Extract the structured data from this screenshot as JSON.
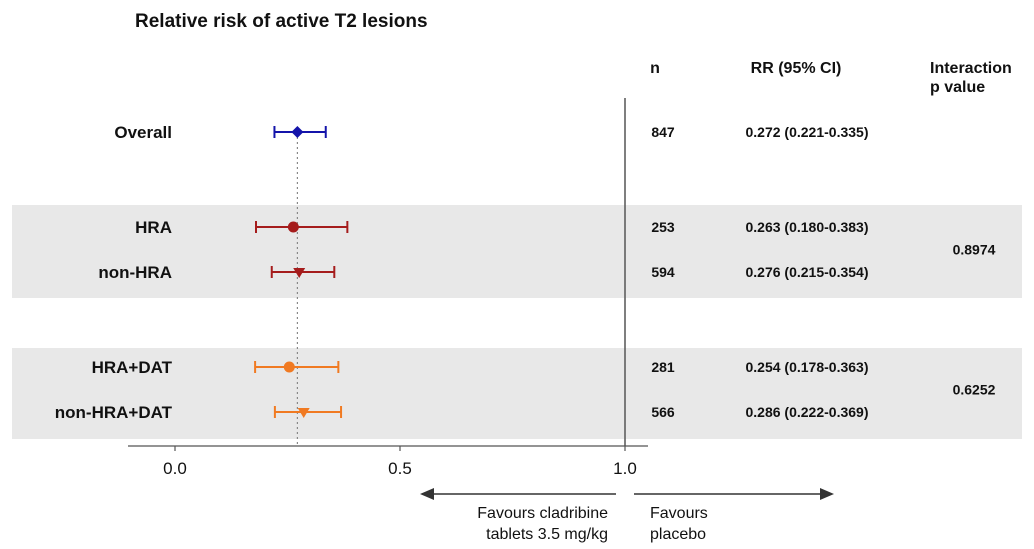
{
  "chart_data": {
    "type": "forest",
    "title": "Relative risk of active T2 lesions",
    "column_headers": {
      "n": "n",
      "rr": "RR (95% CI)",
      "interaction_line1": "Interaction",
      "interaction_line2": "p value"
    },
    "x_axis": {
      "range": [
        -0.1,
        1.05
      ],
      "ticks": [
        0.0,
        0.5,
        1.0
      ],
      "tick_labels": [
        "0.0",
        "0.5",
        "1.0"
      ],
      "reference_line": 1.0,
      "overall_reference_line": 0.272
    },
    "rows": [
      {
        "label": "Overall",
        "n": "847",
        "rr_text": "0.272 (0.221-0.335)",
        "rr": 0.272,
        "lo": 0.221,
        "hi": 0.335,
        "marker": "diamond",
        "color": "#1414aa"
      },
      {
        "label": "HRA",
        "n": "253",
        "rr_text": "0.263 (0.180-0.383)",
        "rr": 0.263,
        "lo": 0.18,
        "hi": 0.383,
        "marker": "circle",
        "color": "#a51c1c"
      },
      {
        "label": "non-HRA",
        "n": "594",
        "rr_text": "0.276 (0.215-0.354)",
        "rr": 0.276,
        "lo": 0.215,
        "hi": 0.354,
        "marker": "triangle-down",
        "color": "#a51c1c"
      },
      {
        "label": "HRA+DAT",
        "n": "281",
        "rr_text": "0.254 (0.178-0.363)",
        "rr": 0.254,
        "lo": 0.178,
        "hi": 0.363,
        "marker": "circle",
        "color": "#f07a22"
      },
      {
        "label": "non-HRA+DAT",
        "n": "566",
        "rr_text": "0.286 (0.222-0.369)",
        "rr": 0.286,
        "lo": 0.222,
        "hi": 0.369,
        "marker": "triangle-down",
        "color": "#f07a22"
      }
    ],
    "groups": [
      {
        "rows": [
          1,
          2
        ],
        "interaction_p": "0.8974",
        "shaded": true
      },
      {
        "rows": [
          3,
          4
        ],
        "interaction_p": "0.6252",
        "shaded": true
      }
    ],
    "direction_labels": {
      "left_line1": "Favours cladribine",
      "left_line2": "tablets 3.5 mg/kg",
      "right_line1": "Favours",
      "right_line2": "placebo"
    },
    "colors": {
      "shading": "#e8e8e8",
      "axis": "#555555",
      "reference": "#555555",
      "dotted": "#888888",
      "text": "#111111"
    }
  }
}
